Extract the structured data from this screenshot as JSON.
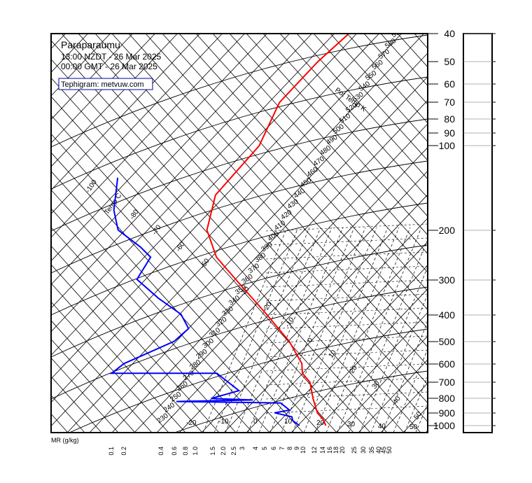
{
  "chart_data": {
    "type": "line",
    "title": "Paraparaumu",
    "subtitle_local": "13:00 NZDT - 26 Mar 2025",
    "subtitle_gmt": "00:00 GMT - 26 Mar 2025",
    "credit": "Tephigram: metvuw.com",
    "pressure_ticks": [
      "40",
      "50",
      "60",
      "70",
      "80",
      "90",
      "100",
      "200",
      "300",
      "400",
      "500",
      "600",
      "700",
      "800",
      "900",
      "1000"
    ],
    "pressure_values": [
      40,
      50,
      60,
      70,
      80,
      90,
      100,
      200,
      300,
      400,
      500,
      600,
      700,
      800,
      900,
      1000
    ],
    "mr_axis_label": "MR (g/kg)",
    "mr_ticks": [
      "0.1",
      "0.2",
      "0.4",
      "0.6",
      "0.8",
      "1.0",
      "1.5",
      "2.0",
      "2.5",
      "3",
      "4",
      "5",
      "6",
      "7",
      "8",
      "9",
      "10",
      "12",
      "14",
      "16",
      "18",
      "20",
      "25",
      "30",
      "35",
      "40",
      "45",
      "50"
    ],
    "pot_temp_label": "Pot Temp K",
    "pot_temp_ticks": [
      "590",
      "580",
      "570",
      "560",
      "550",
      "540",
      "530",
      "520",
      "510",
      "500",
      "490",
      "480",
      "470",
      "460",
      "450",
      "440",
      "430",
      "420",
      "410",
      "400",
      "390",
      "380",
      "370",
      "360",
      "350",
      "340",
      "330",
      "320",
      "310",
      "300",
      "290",
      "280",
      "270",
      "260",
      "250",
      "240",
      "230"
    ],
    "temp_label": "Temp C",
    "temp_ticks": [
      "-100",
      "-80",
      "-70",
      "-60",
      "-50",
      "-30",
      "-20",
      "-10",
      "0",
      "10",
      "20",
      "30",
      "40",
      "50"
    ],
    "bottom_temp_ticks": [
      "-20",
      "-10",
      "0",
      "10",
      "20",
      "30",
      "40",
      "50"
    ],
    "series": [
      {
        "role": "temperature",
        "color": "#ff0000",
        "points": [
          [
            40,
            -52
          ],
          [
            50,
            -56
          ],
          [
            70,
            -60
          ],
          [
            100,
            -58
          ],
          [
            150,
            -62
          ],
          [
            200,
            -58
          ],
          [
            250,
            -50
          ],
          [
            300,
            -40
          ],
          [
            400,
            -24
          ],
          [
            500,
            -12
          ],
          [
            600,
            -4
          ],
          [
            650,
            -2
          ],
          [
            700,
            2
          ],
          [
            800,
            6
          ],
          [
            900,
            10
          ],
          [
            950,
            13
          ],
          [
            1000,
            15
          ]
        ]
      },
      {
        "role": "dewpoint",
        "color": "#0000ff",
        "points": [
          [
            130,
            -95
          ],
          [
            170,
            -90
          ],
          [
            200,
            -85
          ],
          [
            230,
            -75
          ],
          [
            250,
            -70
          ],
          [
            300,
            -70
          ],
          [
            350,
            -60
          ],
          [
            400,
            -50
          ],
          [
            450,
            -45
          ],
          [
            500,
            -47
          ],
          [
            600,
            -58
          ],
          [
            650,
            -60
          ],
          [
            650,
            -28
          ],
          [
            750,
            -18
          ],
          [
            800,
            -25
          ],
          [
            810,
            -12
          ],
          [
            820,
            -35
          ],
          [
            830,
            -3
          ],
          [
            880,
            1
          ],
          [
            900,
            -3
          ],
          [
            930,
            3
          ],
          [
            960,
            4
          ],
          [
            1000,
            7
          ]
        ]
      }
    ]
  }
}
